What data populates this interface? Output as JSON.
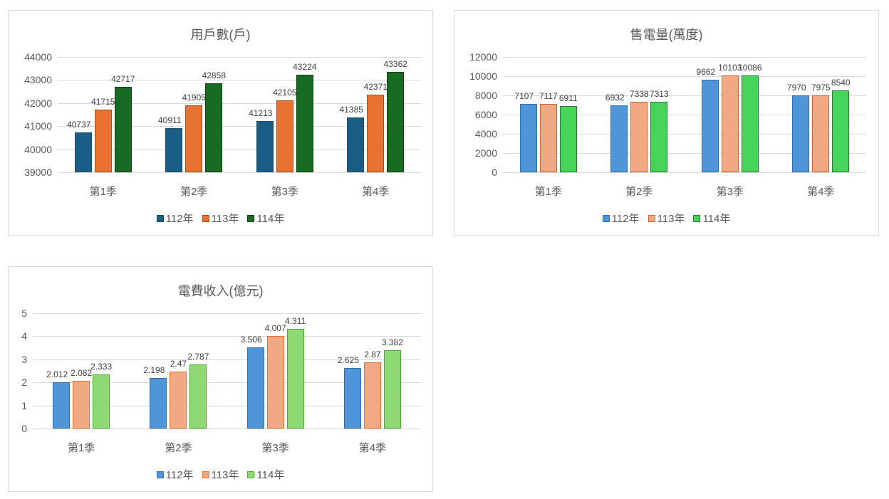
{
  "chart_data": [
    {
      "id": "households",
      "type": "bar",
      "title": "用戶數(戶)",
      "categories": [
        "第1季",
        "第2季",
        "第3季",
        "第4季"
      ],
      "series": [
        {
          "name": "112年",
          "values": [
            40737,
            40911,
            41213,
            41385
          ],
          "color": "#1a5e86",
          "border": "#164f70"
        },
        {
          "name": "113年",
          "values": [
            41715,
            41905,
            42105,
            42371
          ],
          "color": "#e97132",
          "border": "#a04e20"
        },
        {
          "name": "114年",
          "values": [
            42717,
            42858,
            43224,
            43362
          ],
          "color": "#196b24",
          "border": "#0f3f15"
        }
      ],
      "yticks": [
        "39000",
        "40000",
        "41000",
        "42000",
        "43000",
        "44000"
      ],
      "ylim": [
        39000,
        44000
      ],
      "xlabel": "",
      "ylabel": "",
      "grid": true,
      "legend_position": "bottom"
    },
    {
      "id": "electricity_sold",
      "type": "bar",
      "title": "售電量(萬度)",
      "categories": [
        "第1季",
        "第2季",
        "第3季",
        "第4季"
      ],
      "series": [
        {
          "name": "112年",
          "values": [
            7107,
            6932,
            9662,
            7970
          ],
          "color": "#4e95d9",
          "border": "#2f6ea8"
        },
        {
          "name": "113年",
          "values": [
            7117,
            7338,
            10103,
            7975
          ],
          "color": "#f1a983",
          "border": "#c8643a"
        },
        {
          "name": "114年",
          "values": [
            6911,
            7313,
            10086,
            8540
          ],
          "color": "#47d45a",
          "border": "#2a7d34"
        }
      ],
      "yticks": [
        "0",
        "2000",
        "4000",
        "6000",
        "8000",
        "10000",
        "12000"
      ],
      "ylim": [
        0,
        12000
      ],
      "xlabel": "",
      "ylabel": "",
      "grid": true,
      "legend_position": "bottom"
    },
    {
      "id": "revenue",
      "type": "bar",
      "title": "電費收入(億元)",
      "categories": [
        "第1季",
        "第2季",
        "第3季",
        "第4季"
      ],
      "series": [
        {
          "name": "112年",
          "values": [
            2.012,
            2.198,
            3.506,
            2.625
          ],
          "color": "#4e95d9",
          "border": "#2f6ea8"
        },
        {
          "name": "113年",
          "values": [
            2.082,
            2.47,
            4.007,
            2.87
          ],
          "color": "#f1a983",
          "border": "#e97132"
        },
        {
          "name": "114年",
          "values": [
            2.333,
            2.787,
            4.311,
            3.382
          ],
          "color": "#8ed973",
          "border": "#4ea72e"
        }
      ],
      "yticks": [
        "0",
        "1",
        "2",
        "3",
        "4",
        "5"
      ],
      "ylim": [
        0,
        5
      ],
      "xlabel": "",
      "ylabel": "",
      "grid": true,
      "legend_position": "bottom"
    }
  ]
}
